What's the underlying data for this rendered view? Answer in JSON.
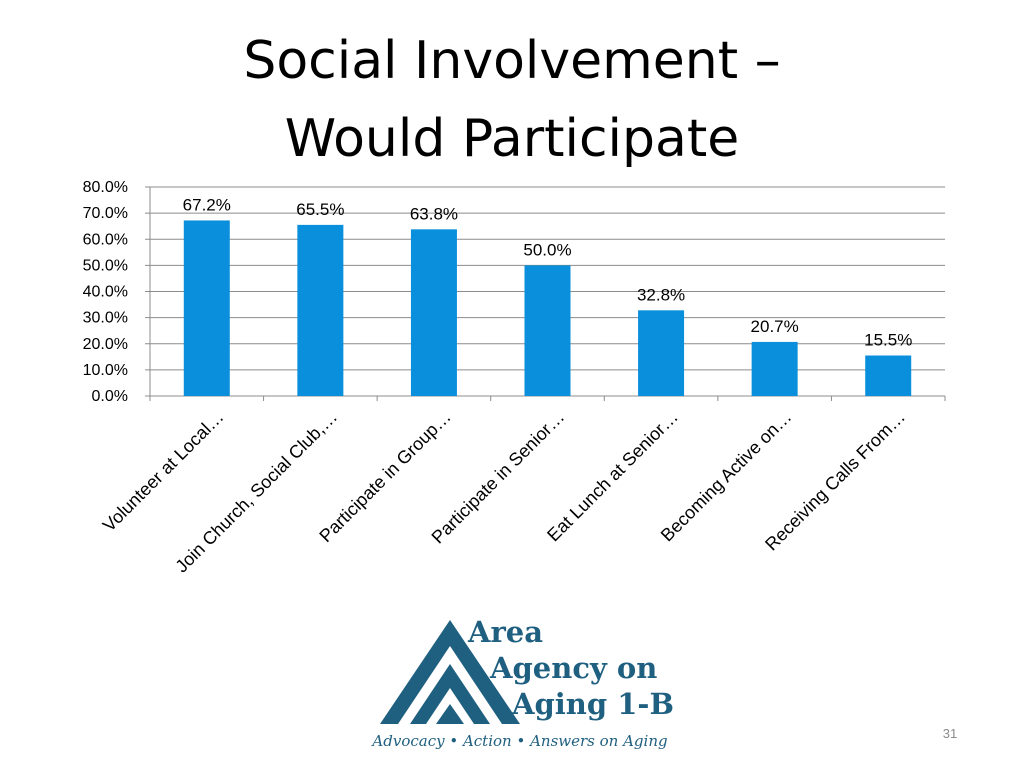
{
  "slide": {
    "title_line1": "Social Involvement –",
    "title_line2": "Would Participate",
    "page_number": "31"
  },
  "logo": {
    "line1": "Area",
    "line2": "Agency on",
    "line3": "Aging 1-B",
    "tagline": "Advocacy • Action • Answers on Aging",
    "color": "#1f5f80"
  },
  "chart_data": {
    "type": "bar",
    "categories": [
      "Volunteer at Local…",
      "Join Church, Social Club,…",
      "Participate in Group…",
      "Participate in Senior…",
      "Eat Lunch at Senior…",
      "Becoming Active on…",
      "Receiving Calls From…"
    ],
    "values": [
      67.2,
      65.5,
      63.8,
      50.0,
      32.8,
      20.7,
      15.5
    ],
    "data_labels": [
      "67.2%",
      "65.5%",
      "63.8%",
      "50.0%",
      "32.8%",
      "20.7%",
      "15.5%"
    ],
    "yticks": [
      "0.0%",
      "10.0%",
      "20.0%",
      "30.0%",
      "40.0%",
      "50.0%",
      "60.0%",
      "70.0%",
      "80.0%"
    ],
    "ylim": [
      0,
      80
    ],
    "grid": true,
    "bar_color": "#0a8fdc",
    "title": "",
    "xlabel": "",
    "ylabel": ""
  }
}
